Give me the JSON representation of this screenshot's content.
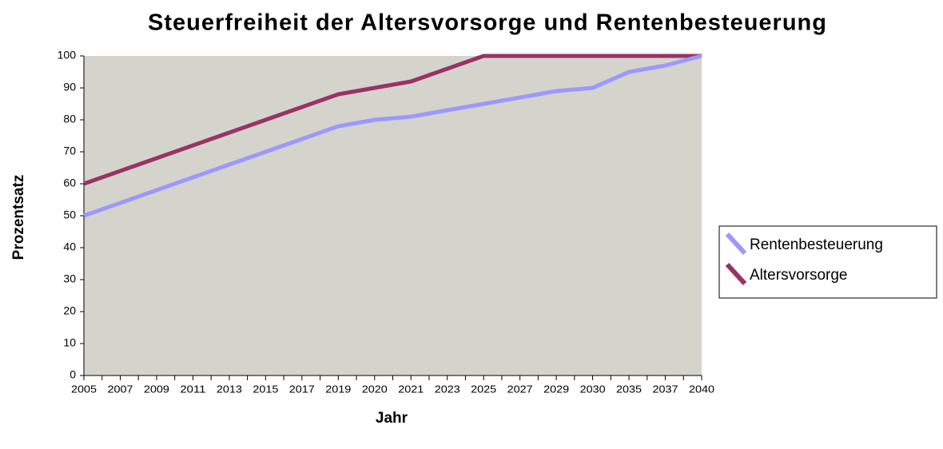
{
  "chart_data": {
    "type": "line",
    "title": "Steuerfreiheit der Altersvorsorge und Rentenbesteuerung",
    "x_label": "Jahr",
    "y_label": "Prozentsatz",
    "categories": [
      "2005",
      "2007",
      "2009",
      "2011",
      "2013",
      "2015",
      "2017",
      "2019",
      "2020",
      "2021",
      "2023",
      "2025",
      "2027",
      "2029",
      "2030",
      "2035",
      "2037",
      "2040"
    ],
    "series": [
      {
        "name": "Rentenbesteuerung",
        "color": "#9999ff",
        "values": [
          50,
          54,
          58,
          62,
          66,
          70,
          74,
          78,
          80,
          81,
          83,
          85,
          87,
          89,
          90,
          95,
          97,
          100
        ]
      },
      {
        "name": "Altersvorsorge",
        "color": "#993366",
        "values": [
          60,
          64,
          68,
          72,
          76,
          80,
          84,
          88,
          90,
          92,
          96,
          100,
          100,
          100,
          100,
          100,
          100,
          100
        ]
      }
    ],
    "ylim": [
      0,
      100
    ],
    "yticks": [
      0,
      10,
      20,
      30,
      40,
      50,
      60,
      70,
      80,
      90,
      100
    ],
    "grid": false,
    "legend": "right",
    "plot_background": "#d4d4cc"
  }
}
